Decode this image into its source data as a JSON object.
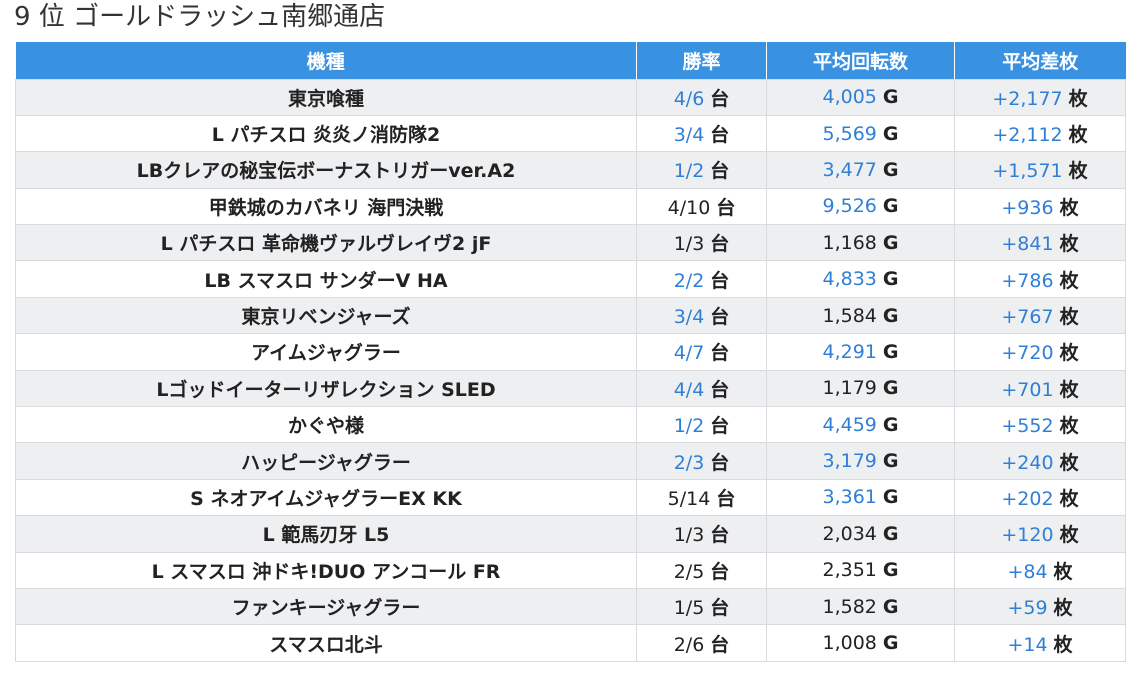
{
  "page": {
    "title": "9 位 ゴールドラッシュ南郷通店"
  },
  "table": {
    "headers": [
      "機種",
      "勝率",
      "平均回転数",
      "平均差枚"
    ],
    "units": {
      "win": "台",
      "spins": "G",
      "diff": "枚"
    },
    "colors": {
      "header_bg": "#3991e2",
      "link": "#2f7fd6",
      "row_alt": "#eeeff1"
    },
    "rows": [
      {
        "name": "東京喰種",
        "win": "4/6",
        "win_link": true,
        "spins": "4,005",
        "spins_link": true,
        "diff": "+2,177",
        "diff_link": true
      },
      {
        "name": "L パチスロ 炎炎ノ消防隊2",
        "win": "3/4",
        "win_link": true,
        "spins": "5,569",
        "spins_link": true,
        "diff": "+2,112",
        "diff_link": true
      },
      {
        "name": "LBクレアの秘宝伝ボーナストリガーver.A2",
        "win": "1/2",
        "win_link": true,
        "spins": "3,477",
        "spins_link": true,
        "diff": "+1,571",
        "diff_link": true
      },
      {
        "name": "甲鉄城のカバネリ 海門決戦",
        "win": "4/10",
        "win_link": false,
        "spins": "9,526",
        "spins_link": true,
        "diff": "+936",
        "diff_link": true
      },
      {
        "name": "L パチスロ 革命機ヴァルヴレイヴ2 jF",
        "win": "1/3",
        "win_link": false,
        "spins": "1,168",
        "spins_link": false,
        "diff": "+841",
        "diff_link": true
      },
      {
        "name": "LB スマスロ サンダーV HA",
        "win": "2/2",
        "win_link": true,
        "spins": "4,833",
        "spins_link": true,
        "diff": "+786",
        "diff_link": true
      },
      {
        "name": "東京リベンジャーズ",
        "win": "3/4",
        "win_link": true,
        "spins": "1,584",
        "spins_link": false,
        "diff": "+767",
        "diff_link": true
      },
      {
        "name": "アイムジャグラー",
        "win": "4/7",
        "win_link": true,
        "spins": "4,291",
        "spins_link": true,
        "diff": "+720",
        "diff_link": true
      },
      {
        "name": "Lゴッドイーターリザレクション SLED",
        "win": "4/4",
        "win_link": true,
        "spins": "1,179",
        "spins_link": false,
        "diff": "+701",
        "diff_link": true
      },
      {
        "name": "かぐや様",
        "win": "1/2",
        "win_link": true,
        "spins": "4,459",
        "spins_link": true,
        "diff": "+552",
        "diff_link": true
      },
      {
        "name": "ハッピージャグラー",
        "win": "2/3",
        "win_link": true,
        "spins": "3,179",
        "spins_link": true,
        "diff": "+240",
        "diff_link": true
      },
      {
        "name": "S ネオアイムジャグラーEX KK",
        "win": "5/14",
        "win_link": false,
        "spins": "3,361",
        "spins_link": true,
        "diff": "+202",
        "diff_link": true
      },
      {
        "name": "L 範馬刃牙 L5",
        "win": "1/3",
        "win_link": false,
        "spins": "2,034",
        "spins_link": false,
        "diff": "+120",
        "diff_link": true
      },
      {
        "name": "L スマスロ 沖ドキ!DUO アンコール FR",
        "win": "2/5",
        "win_link": false,
        "spins": "2,351",
        "spins_link": false,
        "diff": "+84",
        "diff_link": true
      },
      {
        "name": "ファンキージャグラー",
        "win": "1/5",
        "win_link": false,
        "spins": "1,582",
        "spins_link": false,
        "diff": "+59",
        "diff_link": true
      },
      {
        "name": "スマスロ北斗",
        "win": "2/6",
        "win_link": false,
        "spins": "1,008",
        "spins_link": false,
        "diff": "+14",
        "diff_link": true
      }
    ]
  }
}
